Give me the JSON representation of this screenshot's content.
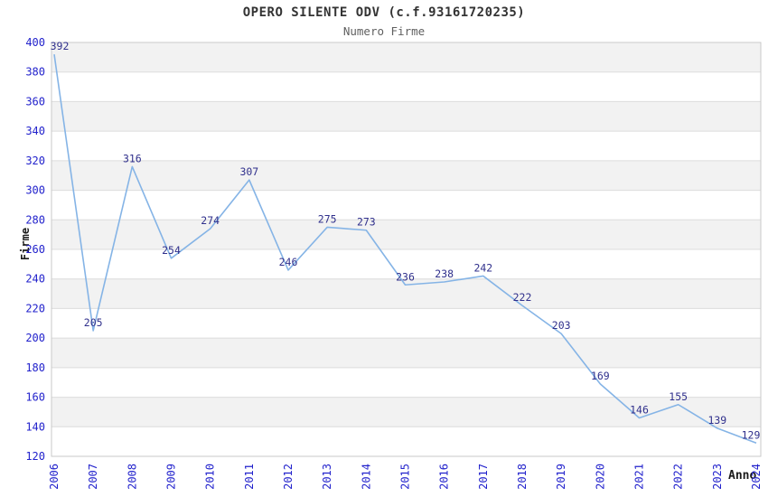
{
  "chart_data": {
    "type": "line",
    "title": "OPERO SILENTE ODV (c.f.93161720235)",
    "subtitle": "Numero Firme",
    "xlabel": "Anno",
    "ylabel": "Firme",
    "categories": [
      "2006",
      "2007",
      "2008",
      "2009",
      "2010",
      "2011",
      "2012",
      "2013",
      "2014",
      "2015",
      "2016",
      "2017",
      "2018",
      "2019",
      "2020",
      "2021",
      "2022",
      "2023",
      "2024"
    ],
    "values": [
      392,
      205,
      316,
      254,
      274,
      307,
      246,
      275,
      273,
      236,
      238,
      242,
      222,
      203,
      169,
      146,
      155,
      139,
      129
    ],
    "ylim": [
      120,
      400
    ],
    "ytick_step": 20,
    "legend": "none",
    "grid": "horizontal gridlines with alternating shaded bands",
    "data_labels": "shown above each point",
    "colors": {
      "line": "#85b4e6",
      "tick_label": "#2222cc",
      "data_label": "#30308c",
      "band": "#f2f2f2",
      "gridline": "#dcdcdc",
      "plot_border": "#c9c9c9",
      "title": "#333333",
      "subtitle": "#606060",
      "axis_title": "#1a1a1a"
    }
  }
}
